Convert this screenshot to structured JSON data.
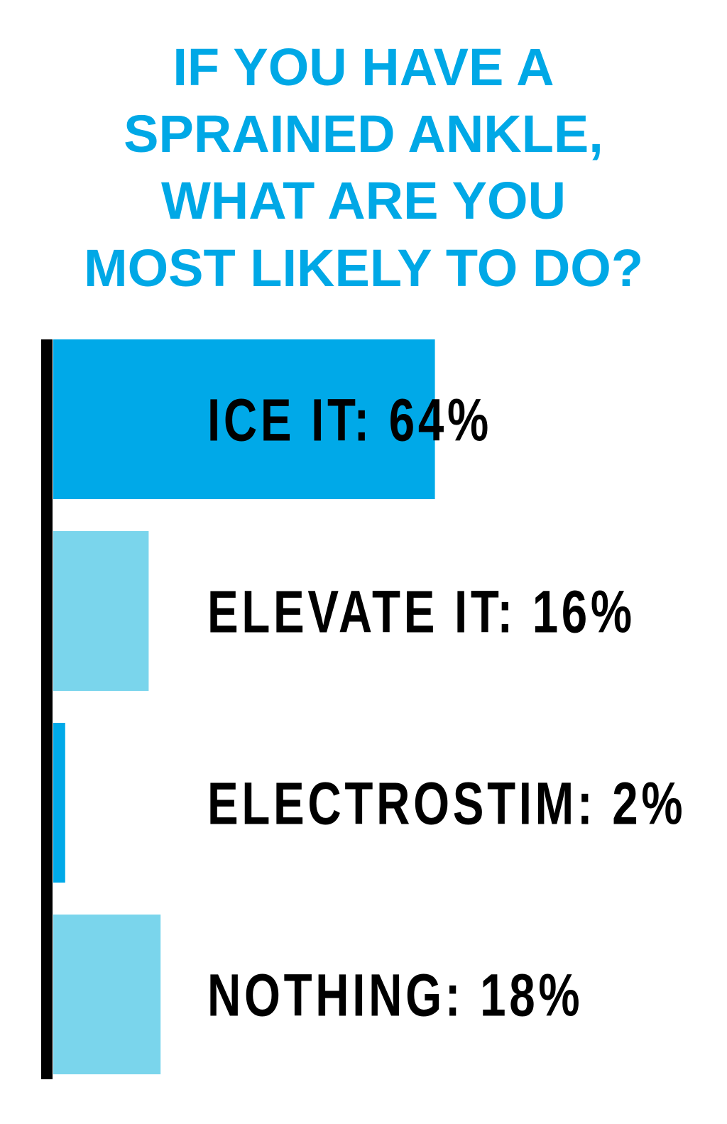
{
  "chart_data": {
    "type": "bar",
    "orientation": "horizontal",
    "title": [
      "IF YOU HAVE A",
      "SPRAINED ANKLE,",
      "WHAT ARE YOU",
      "MOST LIKELY TO DO?"
    ],
    "values": [
      64,
      16,
      2,
      18
    ],
    "value_labels": [
      "ICE IT: 64%",
      "ELEVATE IT: 16%",
      "ELECTROSTIM: 2%",
      "NOTHING: 18%"
    ],
    "colors": [
      "#00a9e8",
      "#7ad5ec",
      "#00a9e8",
      "#7ad5ec"
    ]
  }
}
